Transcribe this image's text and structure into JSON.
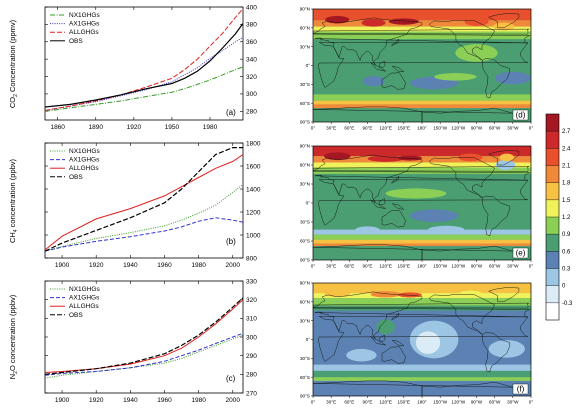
{
  "chart_data": [
    {
      "type": "line",
      "panel_label": "(a)",
      "ylabel_main": "CO",
      "ylabel_sub": "2",
      "ylabel_rest": " Concentration (ppmv)",
      "xlim": [
        1850,
        2006
      ],
      "ylim": [
        270,
        400
      ],
      "xticks": [
        "1860",
        "1890",
        "1920",
        "1950",
        "1980"
      ],
      "xtick_values": [
        1860,
        1890,
        1920,
        1950,
        1980
      ],
      "yticks": [
        "280",
        "300",
        "320",
        "340",
        "360",
        "380",
        "400"
      ],
      "ytick_values": [
        280,
        300,
        320,
        340,
        360,
        380,
        400
      ],
      "legend_position": "top-left",
      "series": [
        {
          "name": "NX1GHGs",
          "color": "#3a9a28",
          "dash": "5,1.5,1,1.5",
          "x": [
            1850,
            1870,
            1890,
            1910,
            1930,
            1950,
            1960,
            1970,
            1980,
            1990,
            2000,
            2006
          ],
          "y": [
            280,
            284,
            288,
            292,
            297,
            302,
            306,
            311,
            316,
            322,
            328,
            331
          ]
        },
        {
          "name": "AX1GHGs",
          "color": "#3333cc",
          "dash": "1,1.3",
          "x": [
            1850,
            1870,
            1890,
            1910,
            1930,
            1950,
            1960,
            1970,
            1980,
            1990,
            2000,
            2006
          ],
          "y": [
            281,
            286,
            291,
            298,
            305,
            314,
            322,
            330,
            341,
            350,
            360,
            365
          ]
        },
        {
          "name": "ALLGHGs",
          "color": "#e02020",
          "dash": "5,2",
          "x": [
            1850,
            1870,
            1890,
            1910,
            1930,
            1950,
            1960,
            1970,
            1980,
            1990,
            2000,
            2006
          ],
          "y": [
            281,
            286,
            292,
            299,
            308,
            318,
            328,
            340,
            355,
            370,
            388,
            398
          ]
        },
        {
          "name": "OBS",
          "color": "#000000",
          "dash": "",
          "x": [
            1850,
            1870,
            1890,
            1910,
            1930,
            1950,
            1960,
            1970,
            1980,
            1990,
            2000,
            2006
          ],
          "y": [
            285,
            288,
            293,
            299,
            306,
            312,
            318,
            326,
            338,
            353,
            369,
            381
          ]
        }
      ]
    },
    {
      "type": "line",
      "panel_label": "(b)",
      "ylabel_main": "CH",
      "ylabel_sub": "4",
      "ylabel_rest": " concentration (ppbv)",
      "xlim": [
        1890,
        2006
      ],
      "ylim": [
        800,
        1800
      ],
      "xticks": [
        "1900",
        "1920",
        "1940",
        "1960",
        "1980",
        "2000"
      ],
      "xtick_values": [
        1900,
        1920,
        1940,
        1960,
        1980,
        2000
      ],
      "yticks": [
        "800",
        "1000",
        "1200",
        "1400",
        "1600",
        "1800"
      ],
      "ytick_values": [
        800,
        1000,
        1200,
        1400,
        1600,
        1800
      ],
      "legend_position": "top-left",
      "series": [
        {
          "name": "NX1GHGs",
          "color": "#3a9a28",
          "dash": "1,1.3",
          "x": [
            1890,
            1900,
            1920,
            1940,
            1960,
            1970,
            1980,
            1990,
            2000,
            2006
          ],
          "y": [
            860,
            900,
            970,
            1020,
            1080,
            1130,
            1190,
            1260,
            1370,
            1440
          ]
        },
        {
          "name": "AX1GHGs",
          "color": "#3333cc",
          "dash": "4,2",
          "x": [
            1890,
            1900,
            1920,
            1940,
            1960,
            1970,
            1980,
            1990,
            2000,
            2006
          ],
          "y": [
            860,
            895,
            945,
            985,
            1035,
            1070,
            1120,
            1150,
            1130,
            1110
          ]
        },
        {
          "name": "ALLGHGs",
          "color": "#e02020",
          "dash": "",
          "x": [
            1890,
            1900,
            1920,
            1940,
            1960,
            1970,
            1980,
            1990,
            2000,
            2006
          ],
          "y": [
            870,
            990,
            1140,
            1230,
            1340,
            1420,
            1500,
            1580,
            1640,
            1700
          ]
        },
        {
          "name": "OBS",
          "color": "#000000",
          "dash": "5,2",
          "x": [
            1890,
            1900,
            1920,
            1940,
            1960,
            1970,
            1980,
            1990,
            2000,
            2006
          ],
          "y": [
            860,
            930,
            1040,
            1150,
            1280,
            1400,
            1550,
            1700,
            1760,
            1760
          ]
        }
      ]
    },
    {
      "type": "line",
      "panel_label": "(c)",
      "ylabel_main": "N",
      "ylabel_sub": "2",
      "ylabel_rest": "O concentration (ppbv)",
      "xlim": [
        1890,
        2006
      ],
      "ylim": [
        270,
        330
      ],
      "xticks": [
        "1900",
        "1920",
        "1940",
        "1960",
        "1980",
        "2000"
      ],
      "xtick_values": [
        1900,
        1920,
        1940,
        1960,
        1980,
        2000
      ],
      "yticks": [
        "270",
        "280",
        "290",
        "300",
        "310",
        "320",
        "330"
      ],
      "ytick_values": [
        270,
        280,
        290,
        300,
        310,
        320,
        330
      ],
      "legend_position": "top-left",
      "series": [
        {
          "name": "NX1GHGs",
          "color": "#3a9a28",
          "dash": "1,1.3",
          "x": [
            1890,
            1900,
            1920,
            1940,
            1960,
            1970,
            1980,
            1990,
            2000,
            2006
          ],
          "y": [
            278,
            279.5,
            281.5,
            283.5,
            286,
            288.5,
            292,
            295.5,
            299,
            301
          ]
        },
        {
          "name": "AX1GHGs",
          "color": "#3333cc",
          "dash": "4,2",
          "x": [
            1890,
            1900,
            1920,
            1940,
            1960,
            1970,
            1980,
            1990,
            2000,
            2006
          ],
          "y": [
            279.5,
            280.5,
            281.5,
            283.5,
            287,
            290,
            293,
            296.5,
            300,
            302
          ]
        },
        {
          "name": "ALLGHGs",
          "color": "#e02020",
          "dash": "",
          "x": [
            1890,
            1900,
            1920,
            1940,
            1960,
            1970,
            1980,
            1990,
            2000,
            2006
          ],
          "y": [
            281,
            281.5,
            283,
            285.5,
            290,
            294,
            300,
            307,
            315,
            320
          ]
        },
        {
          "name": "OBS",
          "color": "#000000",
          "dash": "5,2",
          "x": [
            1890,
            1900,
            1920,
            1940,
            1960,
            1970,
            1980,
            1990,
            2000,
            2006
          ],
          "y": [
            280,
            281,
            283,
            286,
            291,
            295.5,
            301,
            308,
            316,
            321
          ]
        }
      ]
    },
    {
      "type": "heatmap",
      "maps": [
        {
          "panel_label": "(d)"
        },
        {
          "panel_label": "(e)"
        },
        {
          "panel_label": "(f)"
        }
      ],
      "lat_ticks": [
        "90°N",
        "60°N",
        "30°N",
        "0°",
        "30°S",
        "60°S",
        "90°S"
      ],
      "lon_ticks": [
        "0°",
        "30°E",
        "60°E",
        "90°E",
        "120°E",
        "150°E",
        "180°",
        "150°W",
        "120°W",
        "90°W",
        "60°W",
        "30°W",
        "0°"
      ],
      "colorbar_ticks": [
        "2.7",
        "2.4",
        "2.1",
        "1.8",
        "1.5",
        "1.2",
        "0.9",
        "0.6",
        "0.3",
        "0",
        "-0.3"
      ],
      "colorbar_colors": [
        "#a31822",
        "#cc2a2a",
        "#e8502e",
        "#f08a3a",
        "#f7c244",
        "#eff25a",
        "#8bcf57",
        "#4a9e72",
        "#5b82b2",
        "#9dc6e4",
        "#dcecf6",
        "#ffffff"
      ]
    }
  ]
}
